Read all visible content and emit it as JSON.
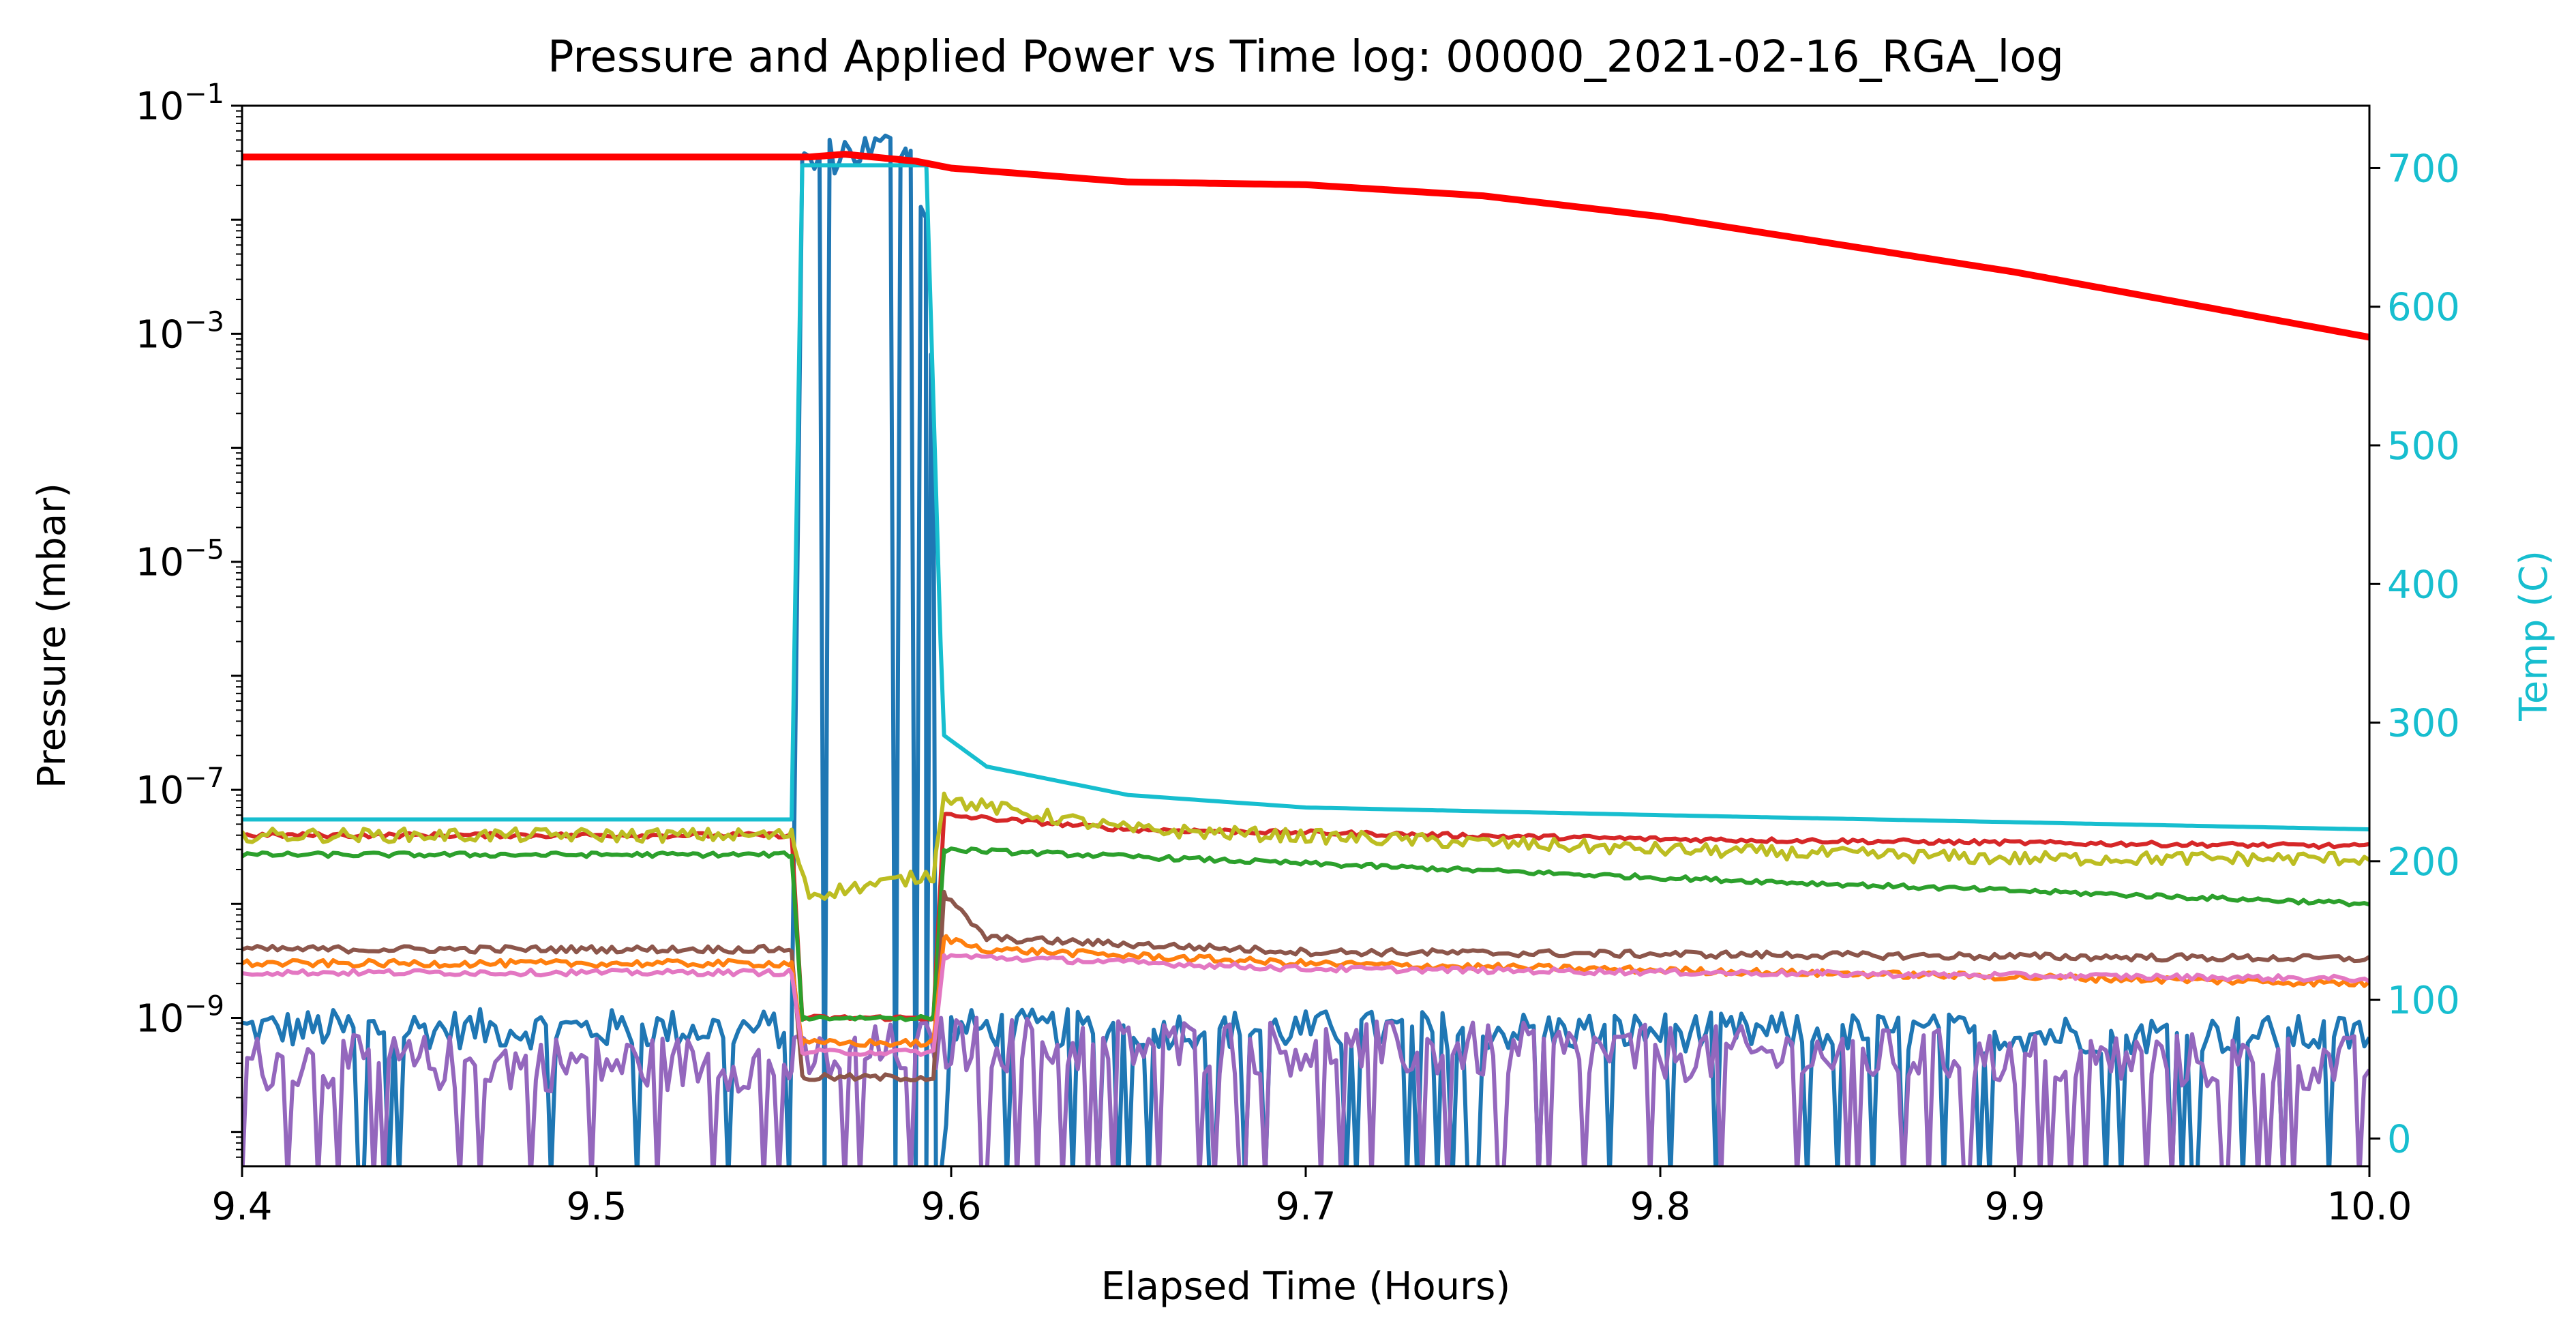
{
  "chart_data": {
    "type": "line",
    "title": "Pressure and Applied Power vs Time log: 00000_2021-02-16_RGA_log",
    "xlabel": "Elapsed Time (Hours)",
    "ylabel_left": "Pressure (mbar)",
    "ylabel_right": "Temp (C)",
    "xlim": [
      9.4,
      10.0
    ],
    "x_ticks": [
      "9.4",
      "9.5",
      "9.6",
      "9.7",
      "9.8",
      "9.9",
      "10.0"
    ],
    "y_left": {
      "scale": "log",
      "lim": [
        5e-11,
        0.1
      ],
      "ticks": [
        {
          "value": 0.1,
          "base": "10",
          "exp": "−1"
        },
        {
          "value": 0.001,
          "base": "10",
          "exp": "−3"
        },
        {
          "value": 1e-05,
          "base": "10",
          "exp": "−5"
        },
        {
          "value": 1e-07,
          "base": "10",
          "exp": "−7"
        },
        {
          "value": 1e-09,
          "base": "10",
          "exp": "−9"
        }
      ]
    },
    "y_right": {
      "scale": "linear",
      "lim": [
        -20,
        745
      ],
      "ticks": [
        "0",
        "100",
        "200",
        "300",
        "400",
        "500",
        "600",
        "700"
      ],
      "color": "#17becf"
    },
    "grid": false,
    "series": [
      {
        "axis": "left",
        "color": "#1f77b4",
        "noise": 0.35,
        "drops": true,
        "points": [
          [
            9.4,
            8e-10
          ],
          [
            9.555,
            8e-10
          ],
          [
            9.558,
            0.03
          ],
          [
            9.57,
            0.04
          ],
          [
            9.588,
            0.043
          ],
          [
            9.593,
            0.01
          ],
          [
            9.595,
            0.0001
          ],
          [
            9.597,
            3e-11
          ],
          [
            9.6,
            8e-10
          ],
          [
            9.65,
            8e-10
          ],
          [
            10.0,
            7e-10
          ]
        ]
      },
      {
        "axis": "left",
        "color": "#9467bd",
        "noise": 0.5,
        "drops": true,
        "points": [
          [
            9.4,
            4e-10
          ],
          [
            9.555,
            4e-10
          ],
          [
            9.6,
            6e-10
          ],
          [
            10.0,
            4e-10
          ]
        ]
      },
      {
        "axis": "left",
        "color": "#d62728",
        "noise": 0.04,
        "points": [
          [
            9.4,
            4e-08
          ],
          [
            9.555,
            4e-08
          ],
          [
            9.558,
            1e-09
          ],
          [
            9.595,
            1e-09
          ],
          [
            9.598,
            6e-08
          ],
          [
            9.65,
            4.5e-08
          ],
          [
            9.8,
            3.7e-08
          ],
          [
            10.0,
            3.2e-08
          ]
        ]
      },
      {
        "axis": "left",
        "color": "#bcbd22",
        "noise": 0.12,
        "points": [
          [
            9.4,
            4e-08
          ],
          [
            9.555,
            4e-08
          ],
          [
            9.56,
            1.2e-08
          ],
          [
            9.595,
            1.8e-08
          ],
          [
            9.598,
            1e-07
          ],
          [
            9.6,
            8e-08
          ],
          [
            9.65,
            4.5e-08
          ],
          [
            9.8,
            3e-08
          ],
          [
            9.9,
            2.5e-08
          ],
          [
            10.0,
            2.5e-08
          ]
        ]
      },
      {
        "axis": "left",
        "color": "#2ca02c",
        "noise": 0.04,
        "points": [
          [
            9.4,
            2.7e-08
          ],
          [
            9.555,
            2.7e-08
          ],
          [
            9.558,
            1e-09
          ],
          [
            9.595,
            1e-09
          ],
          [
            9.598,
            3e-08
          ],
          [
            9.65,
            2.6e-08
          ],
          [
            9.8,
            1.7e-08
          ],
          [
            10.0,
            1e-08
          ]
        ]
      },
      {
        "axis": "left",
        "color": "#8c564b",
        "noise": 0.06,
        "points": [
          [
            9.4,
            4e-09
          ],
          [
            9.555,
            4e-09
          ],
          [
            9.558,
            3e-10
          ],
          [
            9.595,
            3e-10
          ],
          [
            9.598,
            1.2e-08
          ],
          [
            9.61,
            5e-09
          ],
          [
            9.7,
            3.8e-09
          ],
          [
            10.0,
            3.3e-09
          ]
        ]
      },
      {
        "axis": "left",
        "color": "#ff7f0e",
        "noise": 0.06,
        "points": [
          [
            9.4,
            3e-09
          ],
          [
            9.555,
            3e-09
          ],
          [
            9.558,
            6e-10
          ],
          [
            9.595,
            6e-10
          ],
          [
            9.598,
            5e-09
          ],
          [
            9.61,
            4e-09
          ],
          [
            9.7,
            3e-09
          ],
          [
            10.0,
            2e-09
          ]
        ]
      },
      {
        "axis": "left",
        "color": "#e377c2",
        "noise": 0.05,
        "points": [
          [
            9.4,
            2.5e-09
          ],
          [
            9.555,
            2.5e-09
          ],
          [
            9.558,
            5e-10
          ],
          [
            9.595,
            5e-10
          ],
          [
            9.598,
            3.5e-09
          ],
          [
            9.7,
            2.7e-09
          ],
          [
            10.0,
            2.2e-09
          ]
        ]
      },
      {
        "axis": "left",
        "color": "#17becf",
        "noise": 0,
        "points": [
          [
            9.4,
            5.5e-08
          ],
          [
            9.555,
            5.5e-08
          ],
          [
            9.558,
            0.03
          ],
          [
            9.593,
            0.03
          ],
          [
            9.597,
            2e-06
          ],
          [
            9.598,
            3e-07
          ],
          [
            9.61,
            1.6e-07
          ],
          [
            9.65,
            9e-08
          ],
          [
            9.7,
            7e-08
          ],
          [
            9.8,
            6e-08
          ],
          [
            9.9,
            5.2e-08
          ],
          [
            10.0,
            4.5e-08
          ]
        ]
      },
      {
        "axis": "right",
        "color": "#ff0000",
        "width": 10,
        "noise": 0,
        "points": [
          [
            9.4,
            708
          ],
          [
            9.56,
            708
          ],
          [
            9.57,
            710
          ],
          [
            9.59,
            705
          ],
          [
            9.6,
            700
          ],
          [
            9.65,
            690
          ],
          [
            9.7,
            688
          ],
          [
            9.75,
            680
          ],
          [
            9.8,
            665
          ],
          [
            9.9,
            625
          ],
          [
            10.0,
            578
          ]
        ]
      }
    ]
  }
}
